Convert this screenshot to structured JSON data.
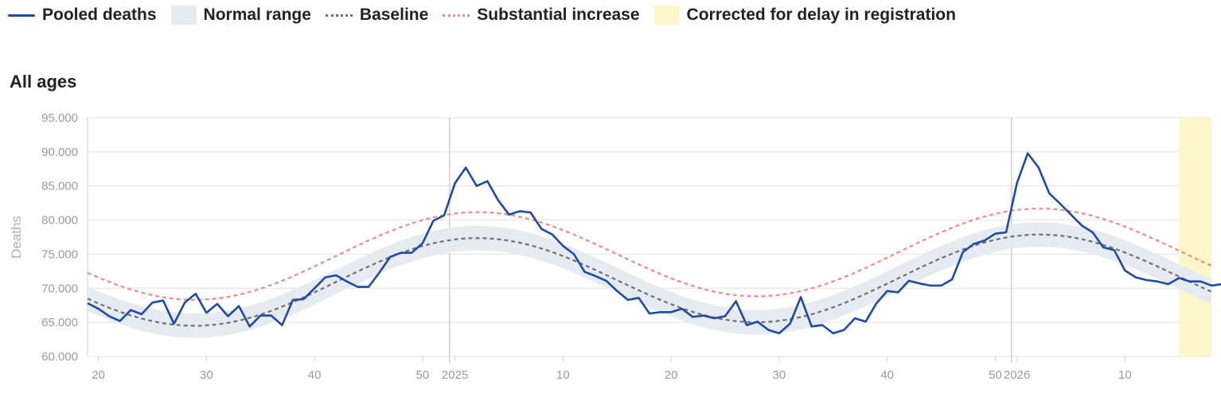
{
  "legend": {
    "pooled": "Pooled deaths",
    "normal": "Normal range",
    "baseline": "Baseline",
    "substantial": "Substantial increase",
    "corrected": "Corrected for delay in registration"
  },
  "colors": {
    "pooled": "#1f4aa8",
    "normal": "#e6ebf1",
    "baseline": "#707070",
    "substantial": "#f08a84",
    "corrected": "#fdf6c9",
    "grid": "#e2e2e2"
  },
  "panel": {
    "title": "All ages"
  },
  "chart_data": {
    "type": "line",
    "title": "All ages",
    "ylabel": "Deaths",
    "ylim": [
      60000,
      95000
    ],
    "y_ticks": [
      "60.000",
      "65.000",
      "70.000",
      "75.000",
      "80.000",
      "85.000",
      "90.000",
      "95.000"
    ],
    "x_ticks": [
      {
        "week": 20,
        "label": "20"
      },
      {
        "week": 30,
        "label": "30"
      },
      {
        "week": 40,
        "label": "40"
      },
      {
        "week": 50,
        "label": "50"
      },
      {
        "week": 53,
        "label": "2025"
      },
      {
        "week": 63,
        "label": "10"
      },
      {
        "week": 73,
        "label": "20"
      },
      {
        "week": 83,
        "label": "30"
      },
      {
        "week": 93,
        "label": "40"
      },
      {
        "week": 103,
        "label": "50"
      },
      {
        "week": 105,
        "label": "2026"
      },
      {
        "week": 115,
        "label": "10"
      }
    ],
    "year_lines": [
      52.5,
      104.5
    ],
    "x_range": [
      19,
      123
    ],
    "corrected_range": [
      120,
      123
    ],
    "x_start": 19,
    "pooled": [
      67800,
      67000,
      65900,
      65200,
      66800,
      66200,
      67900,
      68200,
      64800,
      67900,
      69200,
      66400,
      67700,
      65900,
      67400,
      64400,
      66000,
      66000,
      64600,
      68300,
      68400,
      70000,
      71600,
      71900,
      71000,
      70200,
      70200,
      72300,
      74600,
      75200,
      75200,
      76600,
      79900,
      80700,
      85400,
      87700,
      85000,
      85700,
      82900,
      80800,
      81300,
      81100,
      78700,
      77900,
      76200,
      75000,
      72400,
      71800,
      71100,
      69600,
      68300,
      68600,
      66300,
      66500,
      66500,
      67000,
      65800,
      66000,
      65600,
      65900,
      68100,
      64600,
      65100,
      63900,
      63400,
      64800,
      68700,
      64400,
      64600,
      63400,
      63900,
      65600,
      65100,
      67800,
      69600,
      69400,
      71100,
      70700,
      70400,
      70400,
      71300,
      75300,
      76500,
      77000,
      78000,
      78200,
      85400,
      89800,
      87700,
      83900,
      82400,
      80800,
      79200,
      78200,
      76000,
      75600,
      72600,
      71600,
      71200,
      71000,
      70600,
      71500,
      71000,
      71000,
      70400,
      70600,
      69000
    ],
    "baseline": {
      "mean": 70700,
      "amplitude": 6300,
      "phase_peak_week": 55,
      "trend_per_week": 10
    },
    "normal_range_halfwidth": 1800,
    "substantial_offset": 3800
  }
}
